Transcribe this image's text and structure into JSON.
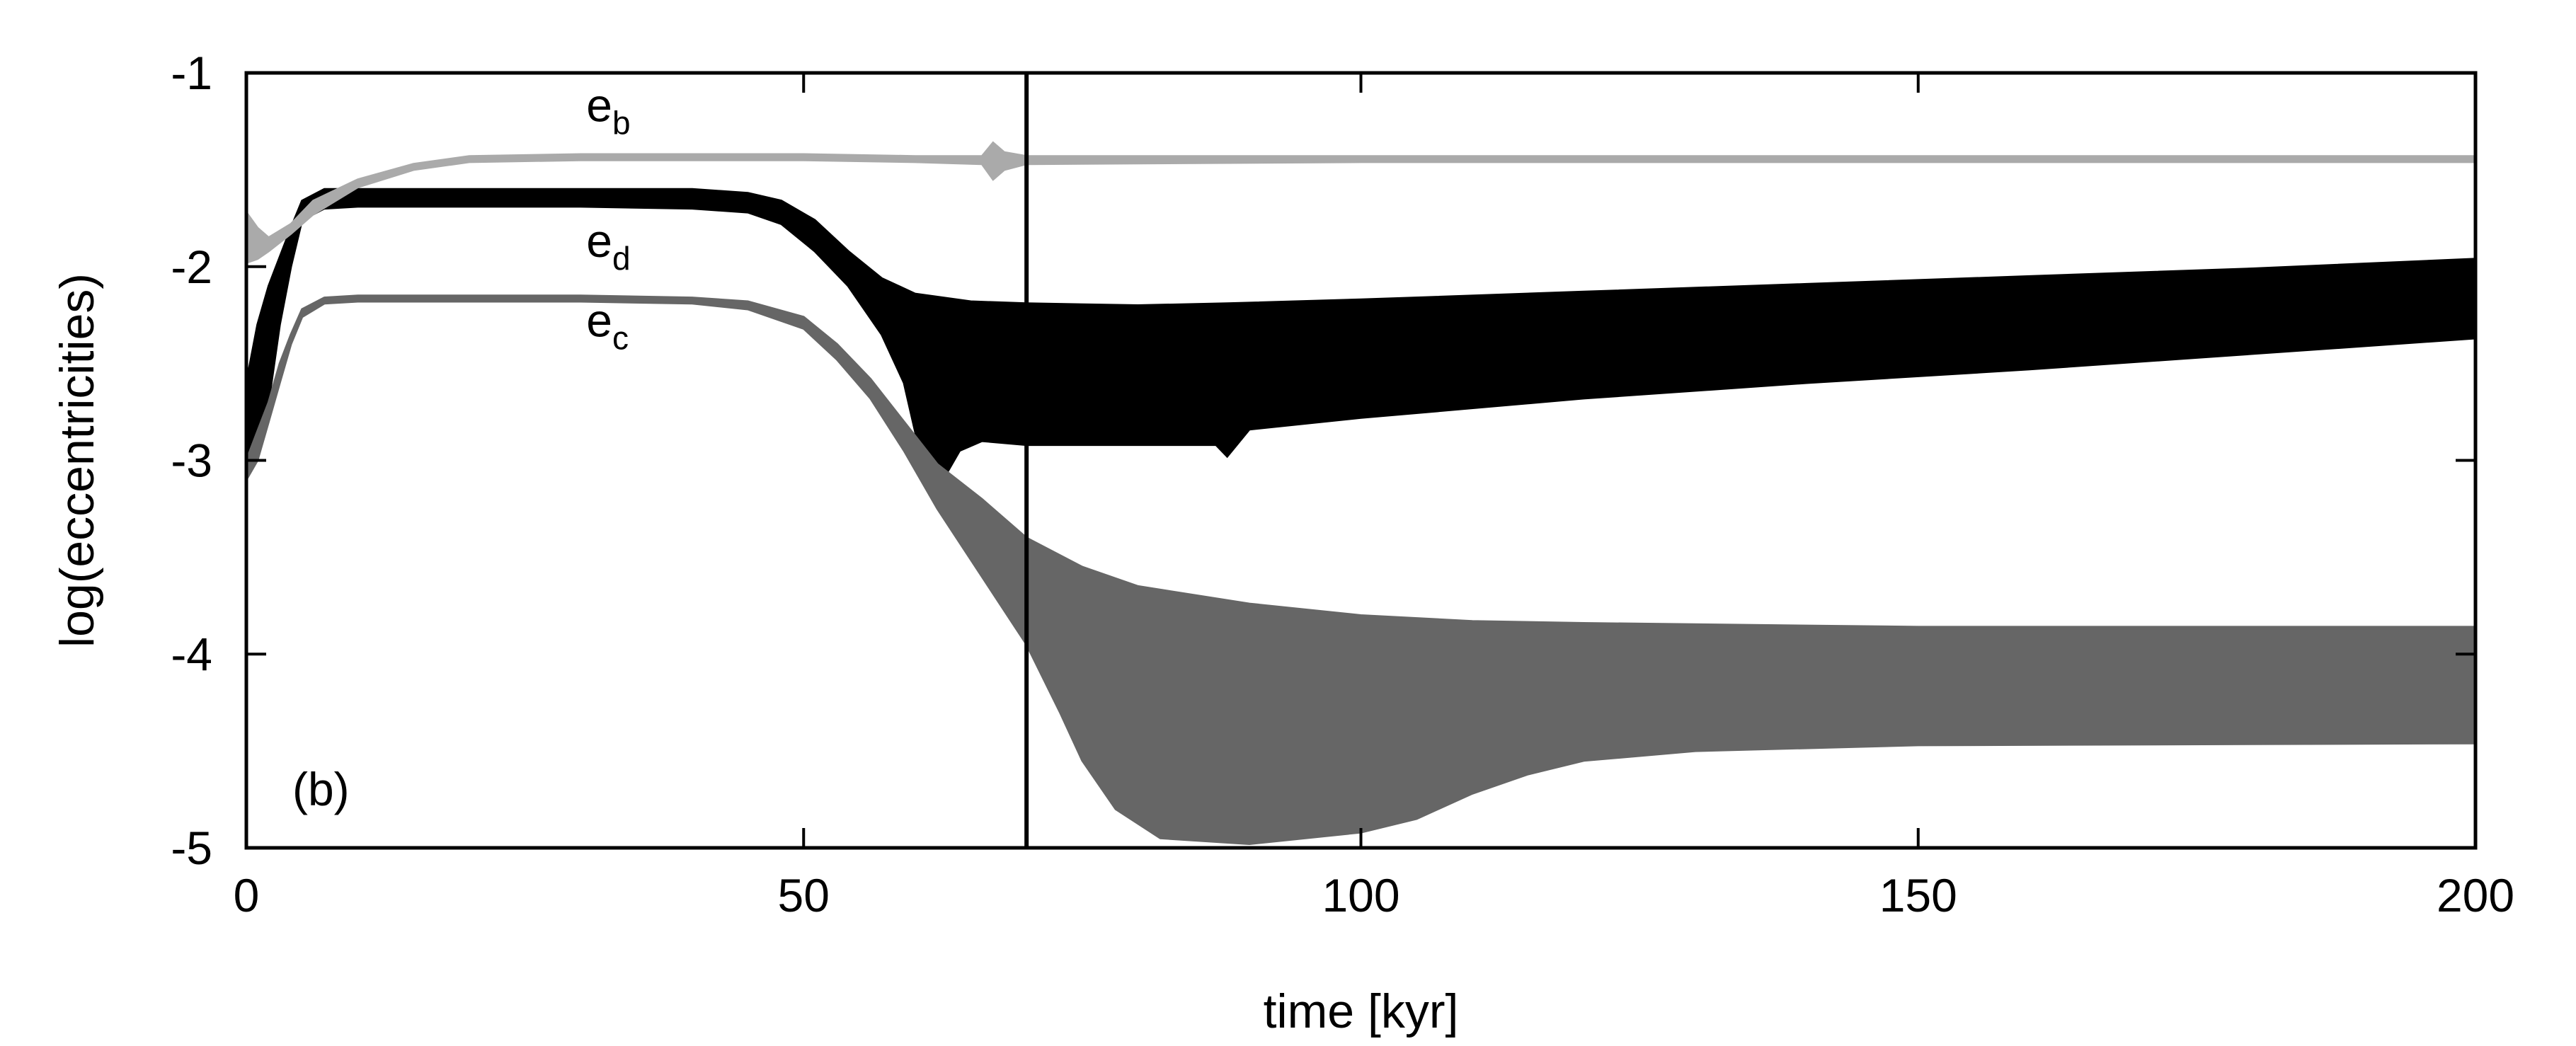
{
  "chart_data": {
    "type": "line",
    "panel_label": "(b)",
    "xlabel": "time [kyr]",
    "ylabel": "log(eccentricities)",
    "xlim": [
      0,
      200
    ],
    "ylim": [
      -5,
      -1
    ],
    "x_ticks": [
      0,
      50,
      100,
      150,
      200
    ],
    "y_ticks": [
      -1,
      -2,
      -3,
      -4,
      -5
    ],
    "x_tick_labels": [
      "0",
      "50",
      "100",
      "150",
      "200"
    ],
    "y_tick_labels": [
      "-1",
      "-2",
      "-3",
      "-4",
      "-5"
    ],
    "grid": false,
    "legend": "inline labels",
    "vertical_marker_x": 70,
    "series": [
      {
        "name": "e_b",
        "label_main": "e",
        "label_sub": "b",
        "label_pos": [
          30.5,
          -1.25
        ],
        "color": "#aaaaaa",
        "upper": [
          [
            0,
            -1.72
          ],
          [
            1,
            -1.8
          ],
          [
            2,
            -1.85
          ],
          [
            4,
            -1.78
          ],
          [
            6,
            -1.66
          ],
          [
            10,
            -1.55
          ],
          [
            15,
            -1.47
          ],
          [
            20,
            -1.43
          ],
          [
            30,
            -1.42
          ],
          [
            40,
            -1.42
          ],
          [
            50,
            -1.42
          ],
          [
            60,
            -1.43
          ],
          [
            66,
            -1.43
          ],
          [
            67,
            -1.36
          ],
          [
            68,
            -1.41
          ],
          [
            70,
            -1.43
          ],
          [
            100,
            -1.43
          ],
          [
            150,
            -1.43
          ],
          [
            200,
            -1.43
          ]
        ],
        "lower": [
          [
            0,
            -1.98
          ],
          [
            1,
            -1.96
          ],
          [
            2,
            -1.92
          ],
          [
            4,
            -1.83
          ],
          [
            6,
            -1.73
          ],
          [
            10,
            -1.59
          ],
          [
            15,
            -1.5
          ],
          [
            20,
            -1.46
          ],
          [
            30,
            -1.45
          ],
          [
            40,
            -1.45
          ],
          [
            50,
            -1.45
          ],
          [
            60,
            -1.46
          ],
          [
            66,
            -1.47
          ],
          [
            67,
            -1.55
          ],
          [
            68,
            -1.5
          ],
          [
            70,
            -1.47
          ],
          [
            100,
            -1.46
          ],
          [
            150,
            -1.46
          ],
          [
            200,
            -1.46
          ]
        ]
      },
      {
        "name": "e_d",
        "label_main": "e",
        "label_sub": "d",
        "label_pos": [
          30.5,
          -1.95
        ],
        "color": "#000000",
        "upper": [
          [
            0,
            -2.6
          ],
          [
            1,
            -2.3
          ],
          [
            2,
            -2.1
          ],
          [
            3,
            -1.95
          ],
          [
            4,
            -1.8
          ],
          [
            5,
            -1.66
          ],
          [
            7,
            -1.6
          ],
          [
            10,
            -1.6
          ],
          [
            20,
            -1.6
          ],
          [
            30,
            -1.6
          ],
          [
            40,
            -1.6
          ],
          [
            45,
            -1.62
          ],
          [
            48,
            -1.66
          ],
          [
            51,
            -1.76
          ],
          [
            54,
            -1.92
          ],
          [
            57,
            -2.06
          ],
          [
            60,
            -2.14
          ],
          [
            65,
            -2.18
          ],
          [
            70,
            -2.19
          ],
          [
            80,
            -2.2
          ],
          [
            88,
            -2.19
          ],
          [
            100,
            -2.17
          ],
          [
            120,
            -2.13
          ],
          [
            140,
            -2.09
          ],
          [
            160,
            -2.05
          ],
          [
            180,
            -2.01
          ],
          [
            200,
            -1.96
          ]
        ],
        "lower": [
          [
            0,
            -3.0
          ],
          [
            1,
            -2.9
          ],
          [
            2,
            -2.7
          ],
          [
            3,
            -2.3
          ],
          [
            4,
            -2.0
          ],
          [
            5,
            -1.76
          ],
          [
            7,
            -1.7
          ],
          [
            10,
            -1.69
          ],
          [
            20,
            -1.69
          ],
          [
            30,
            -1.69
          ],
          [
            40,
            -1.7
          ],
          [
            45,
            -1.72
          ],
          [
            48,
            -1.78
          ],
          [
            51,
            -1.92
          ],
          [
            54,
            -2.1
          ],
          [
            57,
            -2.35
          ],
          [
            59,
            -2.6
          ],
          [
            60,
            -2.85
          ],
          [
            61,
            -3.1
          ],
          [
            62,
            -3.15
          ],
          [
            64,
            -2.95
          ],
          [
            66,
            -2.9
          ],
          [
            70,
            -2.92
          ],
          [
            80,
            -2.92
          ],
          [
            87,
            -2.92
          ],
          [
            88,
            -2.98
          ],
          [
            90,
            -2.84
          ],
          [
            100,
            -2.78
          ],
          [
            120,
            -2.68
          ],
          [
            140,
            -2.6
          ],
          [
            160,
            -2.53
          ],
          [
            180,
            -2.45
          ],
          [
            200,
            -2.37
          ]
        ]
      },
      {
        "name": "e_c",
        "label_main": "e",
        "label_sub": "c",
        "label_pos": [
          30.5,
          -2.36
        ],
        "color": "#666666",
        "upper": [
          [
            0,
            -3.0
          ],
          [
            1,
            -2.85
          ],
          [
            2,
            -2.7
          ],
          [
            3,
            -2.5
          ],
          [
            4,
            -2.35
          ],
          [
            5,
            -2.22
          ],
          [
            7,
            -2.16
          ],
          [
            10,
            -2.15
          ],
          [
            20,
            -2.15
          ],
          [
            30,
            -2.15
          ],
          [
            40,
            -2.16
          ],
          [
            45,
            -2.18
          ],
          [
            50,
            -2.26
          ],
          [
            53,
            -2.4
          ],
          [
            56,
            -2.58
          ],
          [
            59,
            -2.8
          ],
          [
            62,
            -3.02
          ],
          [
            66,
            -3.2
          ],
          [
            70,
            -3.4
          ],
          [
            75,
            -3.55
          ],
          [
            80,
            -3.65
          ],
          [
            90,
            -3.74
          ],
          [
            100,
            -3.8
          ],
          [
            110,
            -3.83
          ],
          [
            120,
            -3.84
          ],
          [
            150,
            -3.86
          ],
          [
            200,
            -3.86
          ]
        ],
        "lower": [
          [
            0,
            -3.1
          ],
          [
            1,
            -3.0
          ],
          [
            2,
            -2.8
          ],
          [
            3,
            -2.6
          ],
          [
            4,
            -2.4
          ],
          [
            5,
            -2.26
          ],
          [
            7,
            -2.19
          ],
          [
            10,
            -2.18
          ],
          [
            20,
            -2.18
          ],
          [
            30,
            -2.18
          ],
          [
            40,
            -2.19
          ],
          [
            45,
            -2.22
          ],
          [
            50,
            -2.32
          ],
          [
            53,
            -2.48
          ],
          [
            56,
            -2.68
          ],
          [
            59,
            -2.95
          ],
          [
            62,
            -3.25
          ],
          [
            66,
            -3.6
          ],
          [
            70,
            -3.95
          ],
          [
            73,
            -4.3
          ],
          [
            75,
            -4.55
          ],
          [
            78,
            -4.8
          ],
          [
            82,
            -4.95
          ],
          [
            90,
            -4.98
          ],
          [
            100,
            -4.92
          ],
          [
            105,
            -4.85
          ],
          [
            110,
            -4.72
          ],
          [
            115,
            -4.62
          ],
          [
            120,
            -4.55
          ],
          [
            130,
            -4.5
          ],
          [
            150,
            -4.47
          ],
          [
            200,
            -4.46
          ]
        ]
      }
    ]
  }
}
